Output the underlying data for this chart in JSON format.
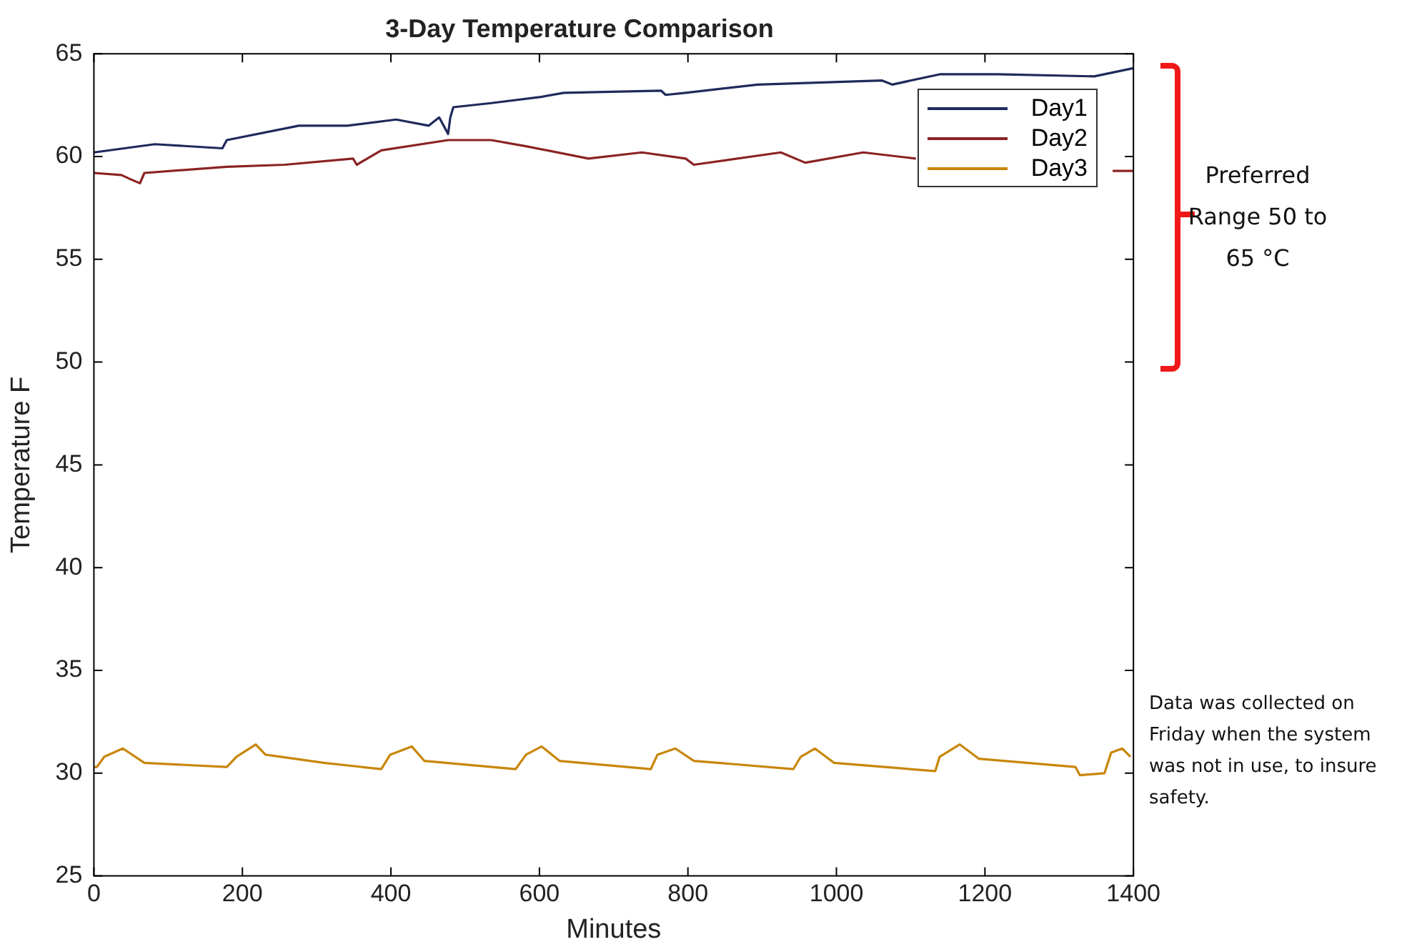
{
  "chart_data": {
    "type": "line",
    "title": "3-Day Temperature Comparison",
    "xlabel": "Minutes",
    "ylabel": "Temperature F",
    "xlim": [
      0,
      1400
    ],
    "xticks": [
      0,
      200,
      400,
      600,
      800,
      1000,
      1200,
      1400
    ],
    "ylim": [
      25,
      65
    ],
    "yticks": [
      25,
      30,
      35,
      40,
      45,
      50,
      55,
      60,
      65
    ],
    "grid": false,
    "legend": "top right",
    "marker": "none",
    "line_style": "solid",
    "annotations": [
      "Preferred Range 50 to 65 °C",
      "Data was collected on Friday when the system was not in use, to insure safety."
    ],
    "series": [
      {
        "name": "Day1",
        "color": "#1f2a5c",
        "x": [
          0,
          82,
          173,
          179,
          276,
          341,
          407,
          451,
          465,
          477,
          480,
          484,
          535,
          602,
          633,
          764,
          770,
          797,
          894,
          1061,
          1075,
          1139,
          1217,
          1347,
          1400
        ],
        "values": [
          60.2,
          60.6,
          60.4,
          60.8,
          61.5,
          61.5,
          61.8,
          61.5,
          61.9,
          61.1,
          61.9,
          62.4,
          62.6,
          62.9,
          63.1,
          63.2,
          63.0,
          63.1,
          63.5,
          63.7,
          63.5,
          64.0,
          64.0,
          63.9,
          64.3
        ]
      },
      {
        "name": "Day2",
        "color": "#8b2323",
        "x": [
          0,
          37,
          49,
          62,
          68,
          179,
          257,
          349,
          354,
          387,
          477,
          535,
          582,
          666,
          738,
          797,
          808,
          925,
          958,
          1036,
          1107,
          1120,
          1372,
          1400
        ],
        "values": [
          59.2,
          59.1,
          58.9,
          58.7,
          59.2,
          59.5,
          59.6,
          59.9,
          59.6,
          60.3,
          60.8,
          60.8,
          60.5,
          59.9,
          60.2,
          59.9,
          59.6,
          60.2,
          59.7,
          60.2,
          59.9,
          null,
          59.3,
          59.3
        ]
      },
      {
        "name": "Day3",
        "color": "#c8860a",
        "x": [
          0,
          4,
          14,
          39,
          68,
          179,
          192,
          218,
          231,
          310,
          387,
          399,
          428,
          445,
          568,
          582,
          603,
          627,
          750,
          759,
          783,
          808,
          942,
          952,
          971,
          997,
          1133,
          1139,
          1166,
          1192,
          1322,
          1328,
          1361,
          1370,
          1385,
          1396
        ],
        "values": [
          30.3,
          30.3,
          30.8,
          31.2,
          30.5,
          30.3,
          30.8,
          31.4,
          30.9,
          30.5,
          30.2,
          30.9,
          31.3,
          30.6,
          30.2,
          30.9,
          31.3,
          30.6,
          30.2,
          30.9,
          31.2,
          30.6,
          30.2,
          30.8,
          31.2,
          30.5,
          30.1,
          30.8,
          31.4,
          30.7,
          30.3,
          29.9,
          30.0,
          31.0,
          31.2,
          30.8
        ]
      }
    ]
  }
}
